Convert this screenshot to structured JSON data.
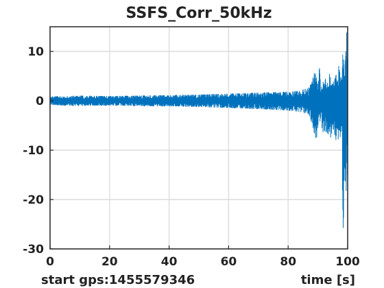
{
  "chart_data": {
    "type": "line",
    "title": "SSFS_Corr_50kHz",
    "xlabel": "time [s]",
    "start_label": "start gps:1455579346",
    "xlim": [
      0,
      100
    ],
    "ylim": [
      -30,
      15
    ],
    "xticks": [
      0,
      20,
      40,
      60,
      80,
      100
    ],
    "yticks": [
      10,
      0,
      -10,
      -20,
      -30
    ],
    "grid": true,
    "series": [
      {
        "color": "#0072BD",
        "x": [
          0,
          10,
          20,
          30,
          40,
          50,
          60,
          70,
          80,
          85,
          87,
          88,
          89,
          90,
          90.5,
          91,
          92,
          93,
          94,
          95,
          96,
          97,
          98,
          98.5,
          99,
          99.5,
          100
        ],
        "envelope_upper": [
          0.8,
          1.0,
          0.9,
          1.0,
          1.1,
          1.2,
          1.4,
          1.6,
          1.8,
          2.2,
          2.8,
          4.0,
          6.0,
          3.5,
          7.0,
          3.0,
          5.0,
          4.0,
          6.5,
          3.5,
          5.0,
          7.0,
          4.5,
          12.0,
          5.0,
          14.0,
          14.0
        ],
        "envelope_lower": [
          -0.8,
          -1.0,
          -0.9,
          -1.0,
          -1.1,
          -1.2,
          -1.4,
          -1.6,
          -1.9,
          -2.3,
          -3.0,
          -4.5,
          -7.0,
          -10.5,
          -4.0,
          -4.5,
          -7.0,
          -6.0,
          -9.0,
          -5.0,
          -8.0,
          -10.0,
          -7.0,
          -27.0,
          -12.0,
          -24.0,
          -14.0
        ]
      }
    ]
  }
}
